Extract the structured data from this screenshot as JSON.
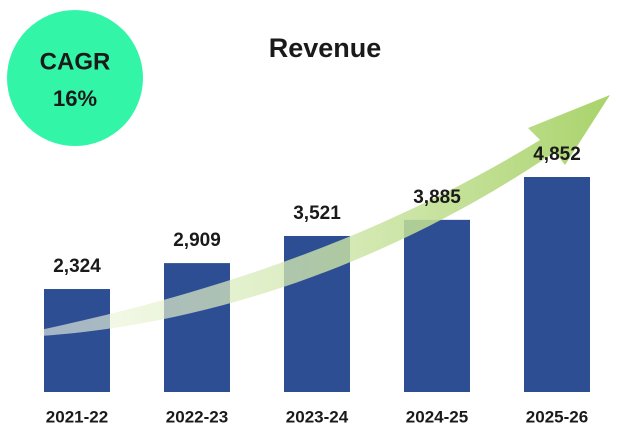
{
  "chart_data": {
    "type": "bar",
    "title": "Revenue",
    "annotation": {
      "label": "CAGR",
      "value": "16%",
      "color": "#33f5a8"
    },
    "categories": [
      "2021-22",
      "2022-23",
      "2023-24",
      "2024-25",
      "2025-26"
    ],
    "values": [
      2324,
      2909,
      3521,
      3885,
      4852
    ],
    "value_labels": [
      "2,324",
      "2,909",
      "3,521",
      "3,885",
      "4,852"
    ],
    "color": "#2e4e94"
  }
}
